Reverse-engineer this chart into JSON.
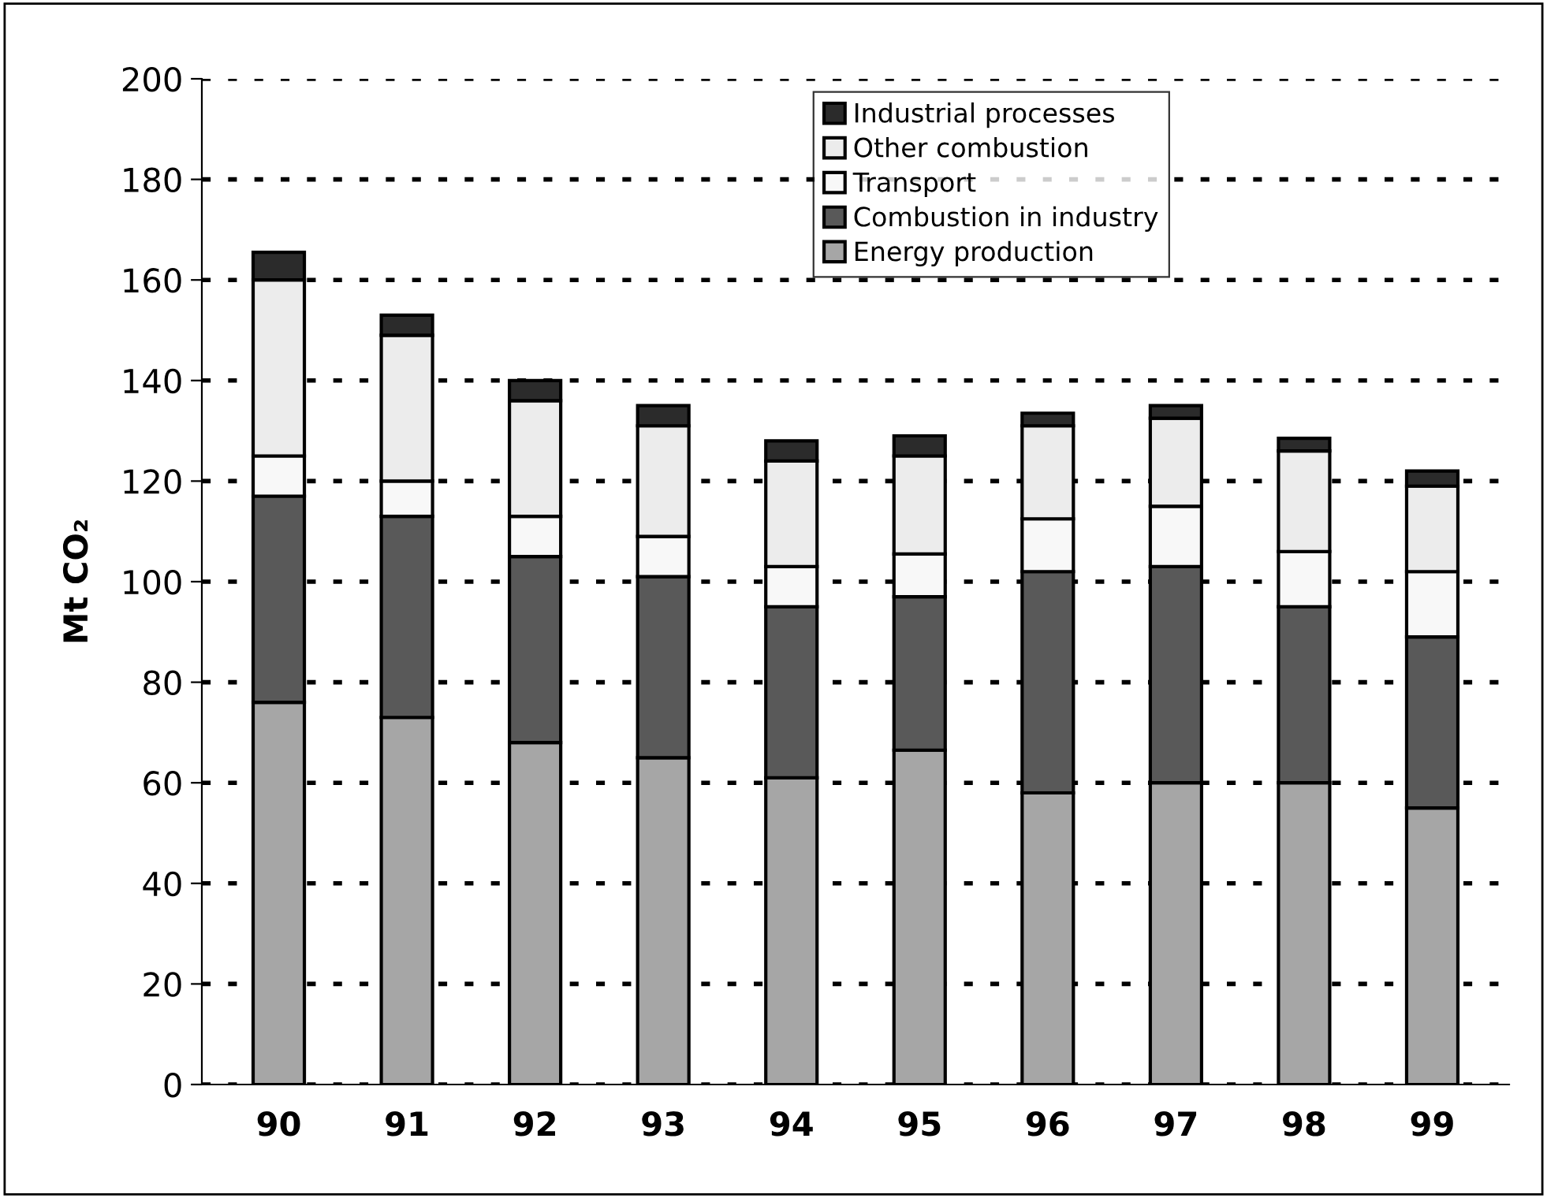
{
  "chart_data": {
    "type": "bar",
    "stacked": true,
    "ylabel": "Mt CO₂",
    "categories": [
      "90",
      "91",
      "92",
      "93",
      "94",
      "95",
      "96",
      "97",
      "98",
      "99"
    ],
    "series": [
      {
        "name": "Energy production",
        "color": "#a6a6a6",
        "values": [
          76,
          73,
          68,
          65,
          61,
          66.5,
          58,
          60,
          60,
          55
        ]
      },
      {
        "name": "Combustion in industry",
        "color": "#595959",
        "values": [
          41,
          40,
          37,
          36,
          34,
          30.5,
          44,
          43,
          35,
          34
        ]
      },
      {
        "name": "Transport",
        "color": "#f8f8f8",
        "values": [
          8,
          7,
          8,
          8,
          8,
          8.5,
          10.5,
          12,
          11,
          13
        ]
      },
      {
        "name": "Other combustion",
        "color": "#ececec",
        "values": [
          35,
          29,
          23,
          22,
          21,
          19.5,
          18.5,
          17.5,
          20,
          17
        ]
      },
      {
        "name": "Industrial processes",
        "color": "#2b2b2b",
        "values": [
          5.5,
          4,
          4,
          4,
          4,
          4,
          2.5,
          2.5,
          2.5,
          3
        ]
      }
    ],
    "ylim": [
      0,
      200
    ],
    "yticks": [
      0,
      20,
      40,
      60,
      80,
      100,
      120,
      140,
      160,
      180,
      200
    ],
    "grid": "y",
    "legend": "top right"
  }
}
